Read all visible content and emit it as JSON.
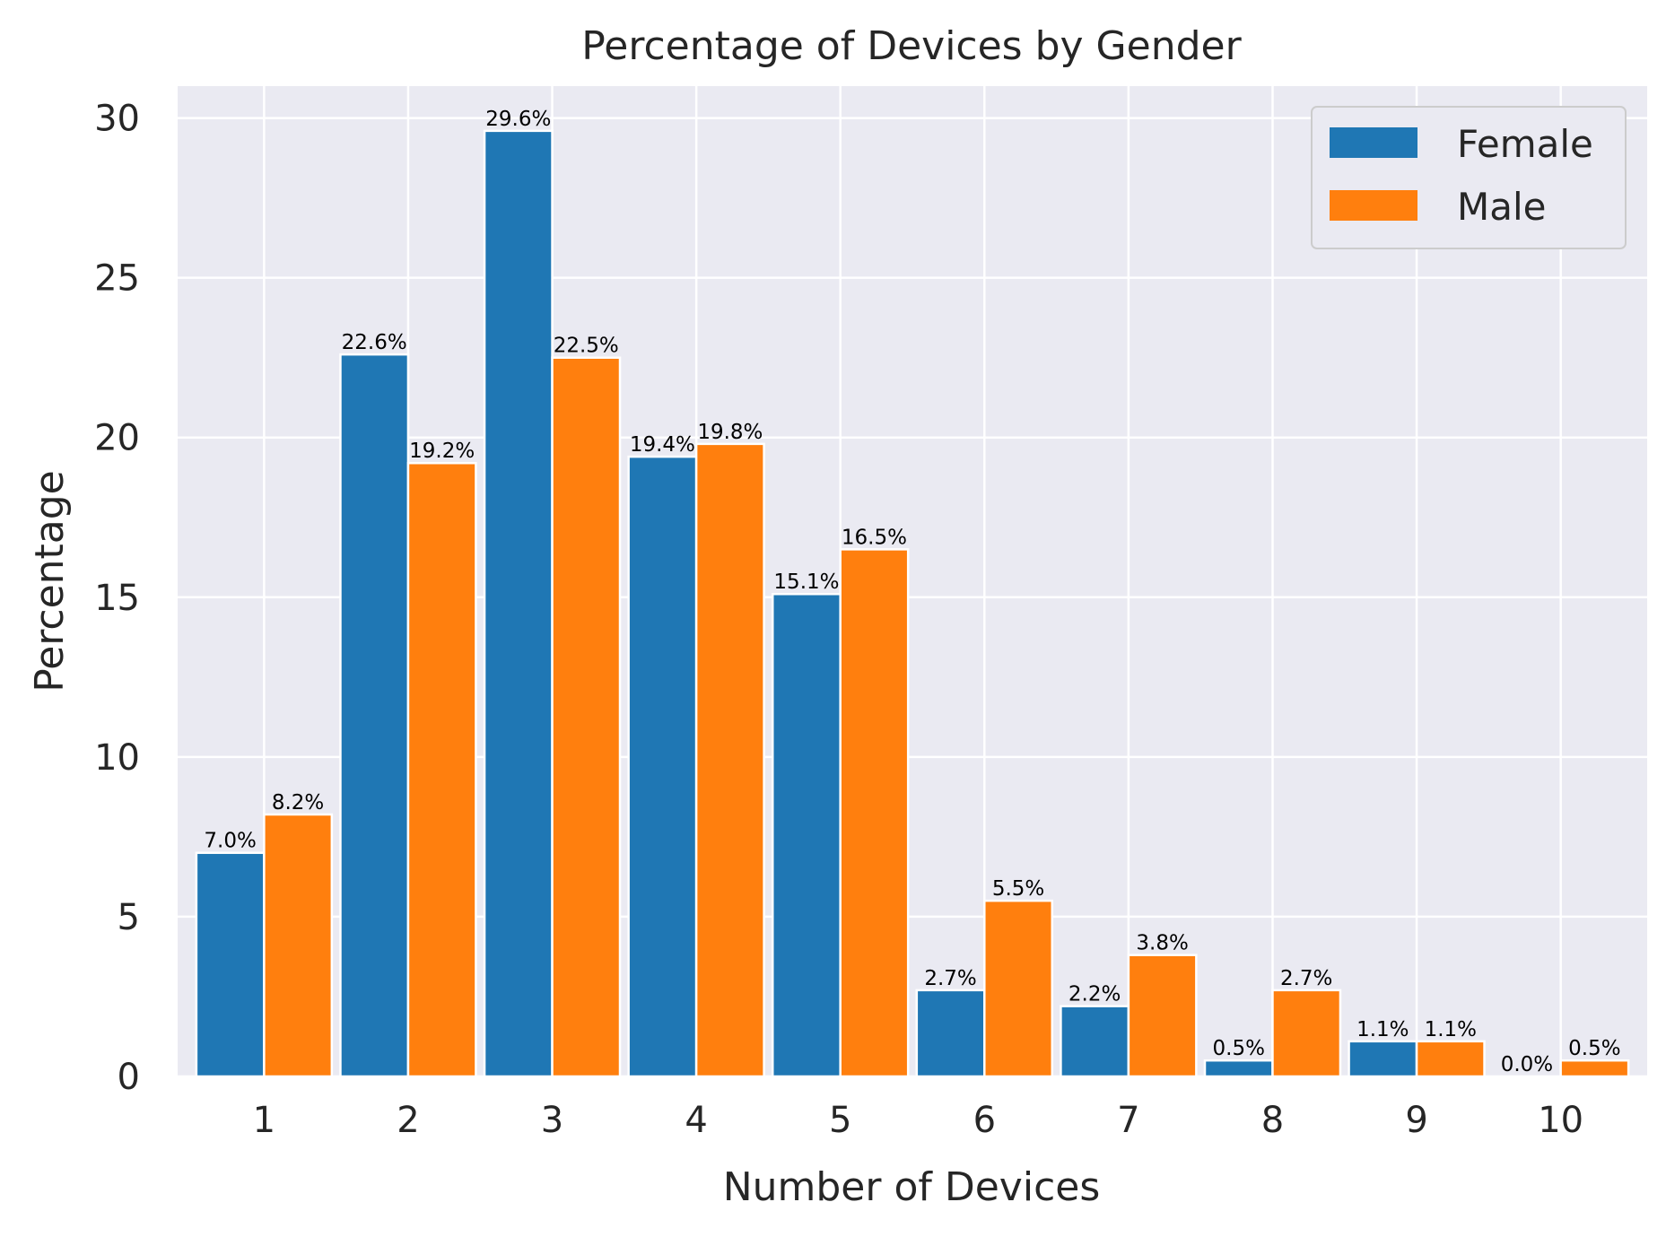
{
  "chart_data": {
    "type": "bar",
    "title": "Percentage of Devices by Gender",
    "xlabel": "Number of Devices",
    "ylabel": "Percentage",
    "categories": [
      "1",
      "2",
      "3",
      "4",
      "5",
      "6",
      "7",
      "8",
      "9",
      "10"
    ],
    "series": [
      {
        "name": "Female",
        "color": "#1f77b4",
        "values": [
          7.0,
          22.6,
          29.6,
          19.4,
          15.1,
          2.7,
          2.2,
          0.5,
          1.1,
          0.0
        ],
        "labels": [
          "7.0%",
          "22.6%",
          "29.6%",
          "19.4%",
          "15.1%",
          "2.7%",
          "2.2%",
          "0.5%",
          "1.1%",
          "0.0%"
        ]
      },
      {
        "name": "Male",
        "color": "#ff7f0e",
        "values": [
          8.2,
          19.2,
          22.5,
          19.8,
          16.5,
          5.5,
          3.8,
          2.7,
          1.1,
          0.5
        ],
        "labels": [
          "8.2%",
          "19.2%",
          "22.5%",
          "19.8%",
          "16.5%",
          "5.5%",
          "3.8%",
          "2.7%",
          "1.1%",
          "0.5%"
        ]
      }
    ],
    "ylim": [
      0,
      31
    ],
    "yticks": [
      0,
      5,
      10,
      15,
      20,
      25,
      30
    ],
    "grid": true,
    "legend": "top-right",
    "background_color": "#eaeaf2",
    "grid_color": "#ffffff",
    "text_color": "#262626"
  }
}
